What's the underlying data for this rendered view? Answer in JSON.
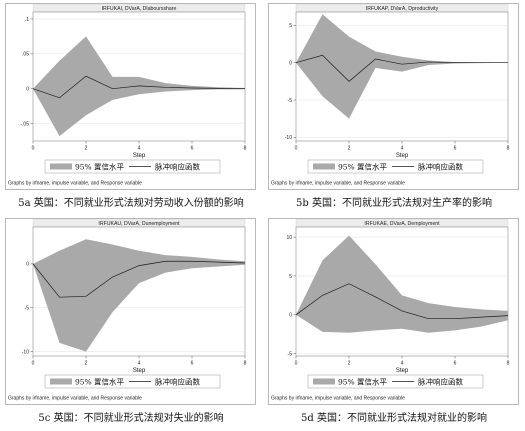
{
  "legend": {
    "ci_label": "95% 置信水平",
    "irf_label": "脉冲响应函数"
  },
  "note": "Graphs by irfname, impulse variable, and Response variable",
  "chart_data": [
    {
      "type": "line",
      "title": "IRFUKAI, DVarA, Dlaboursshare",
      "xlabel": "Step",
      "caption": "5a 英国：不同就业形式法规对劳动收入份额的影响",
      "xlim": [
        0,
        8
      ],
      "ylim": [
        -0.075,
        0.11
      ],
      "x_ticks": [
        0,
        2,
        4,
        6,
        8
      ],
      "y_ticks": [
        {
          "v": -0.05,
          "l": "-.05"
        },
        {
          "v": 0,
          "l": "0"
        },
        {
          "v": 0.05,
          "l": ".05"
        },
        {
          "v": 0.1,
          "l": ".1"
        }
      ],
      "x": [
        0,
        1,
        2,
        3,
        4,
        5,
        6,
        7,
        8
      ],
      "irf": [
        0,
        -0.013,
        0.018,
        0.0,
        0.004,
        0.002,
        0.001,
        0.0005,
        0.0
      ],
      "ci_upper": [
        0,
        0.04,
        0.075,
        0.017,
        0.017,
        0.008,
        0.004,
        0.002,
        0.001
      ],
      "ci_lower": [
        0,
        -0.068,
        -0.038,
        -0.016,
        -0.008,
        -0.004,
        -0.002,
        -0.001,
        -0.001
      ]
    },
    {
      "type": "line",
      "title": "IRFUKAP, DVarA, Dproductivity",
      "xlabel": "Step",
      "caption": "5b 英国：不同就业形式法规对生产率的影响",
      "xlim": [
        0,
        8
      ],
      "ylim": [
        -10.5,
        6.8
      ],
      "x_ticks": [
        0,
        2,
        4,
        6,
        8
      ],
      "y_ticks": [
        {
          "v": -10,
          "l": "-10"
        },
        {
          "v": -5,
          "l": "-5"
        },
        {
          "v": 0,
          "l": "0"
        },
        {
          "v": 5,
          "l": "5"
        }
      ],
      "x": [
        0,
        1,
        2,
        3,
        4,
        5,
        6,
        7,
        8
      ],
      "irf": [
        0,
        1.0,
        -2.5,
        0.5,
        -0.2,
        0.1,
        0.0,
        0.0,
        0.0
      ],
      "ci_upper": [
        0,
        6.5,
        3.5,
        1.5,
        0.8,
        0.3,
        0.1,
        0.05,
        0.02
      ],
      "ci_lower": [
        0,
        -4.5,
        -7.5,
        -0.7,
        -1.2,
        -0.3,
        -0.1,
        -0.05,
        -0.02
      ]
    },
    {
      "type": "line",
      "title": "IRFUKAU, DVarA, Dunemployment",
      "xlabel": "Step",
      "caption": "5c 英国：不同就业形式法规对失业的影响",
      "xlim": [
        0,
        8
      ],
      "ylim": [
        -10.5,
        4.2
      ],
      "x_ticks": [
        0,
        2,
        4,
        6,
        8
      ],
      "y_ticks": [
        {
          "v": -10,
          "l": "-10"
        },
        {
          "v": -5,
          "l": "-5"
        },
        {
          "v": 0,
          "l": "0"
        }
      ],
      "x": [
        0,
        1,
        2,
        3,
        4,
        5,
        6,
        7,
        8
      ],
      "irf": [
        0,
        -3.8,
        -3.7,
        -1.5,
        -0.2,
        0.3,
        0.3,
        0.2,
        0.1
      ],
      "ci_upper": [
        0,
        1.5,
        2.8,
        2.2,
        1.5,
        1.0,
        0.8,
        0.5,
        0.3
      ],
      "ci_lower": [
        0,
        -9.0,
        -10.0,
        -5.5,
        -2.2,
        -1.0,
        -0.5,
        -0.3,
        -0.1
      ]
    },
    {
      "type": "line",
      "title": "IRFUKAE, DVarA, Demployment",
      "xlabel": "Step",
      "caption": "5d 英国：不同就业形式法规对就业的影响",
      "xlim": [
        0,
        8
      ],
      "ylim": [
        -5.3,
        11.3
      ],
      "x_ticks": [
        0,
        2,
        4,
        6,
        8
      ],
      "y_ticks": [
        {
          "v": -5,
          "l": "-5"
        },
        {
          "v": 0,
          "l": "0"
        },
        {
          "v": 5,
          "l": "5"
        },
        {
          "v": 10,
          "l": "10"
        }
      ],
      "x": [
        0,
        1,
        2,
        3,
        4,
        5,
        6,
        7,
        8
      ],
      "irf": [
        0,
        2.5,
        4.0,
        2.3,
        0.5,
        -0.5,
        -0.5,
        -0.3,
        -0.1
      ],
      "ci_upper": [
        0,
        7.0,
        10.2,
        6.5,
        2.5,
        1.5,
        1.0,
        0.7,
        0.5
      ],
      "ci_lower": [
        0,
        -2.2,
        -2.3,
        -2.0,
        -1.8,
        -2.3,
        -2.0,
        -1.5,
        -0.7
      ]
    }
  ]
}
